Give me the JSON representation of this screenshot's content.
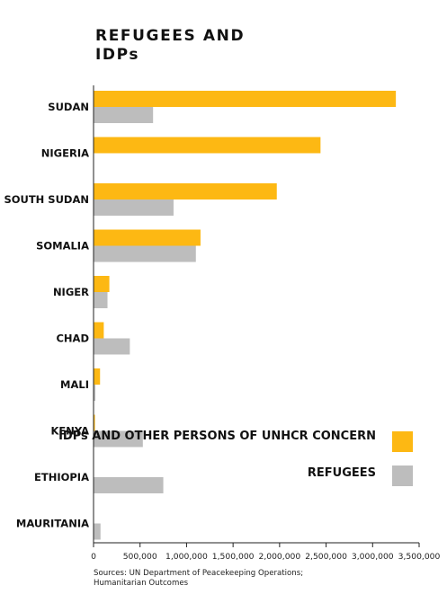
{
  "chart_data": {
    "type": "bar",
    "title": "REFUGEES AND IDPs",
    "categories": [
      "SUDAN",
      "NIGERIA",
      "SOUTH SUDAN",
      "SOMALIA",
      "NIGER",
      "CHAD",
      "MALI",
      "KENYA",
      "ETHIOPIA",
      "MAURITANIA"
    ],
    "series": [
      {
        "name": "IDPs AND OTHER PERSONS OF UNHCR CONCERN",
        "color": "#FDB813",
        "values": [
          3250000,
          2440000,
          1970000,
          1150000,
          170000,
          110000,
          70000,
          15000,
          0,
          0
        ]
      },
      {
        "name": "REFUGEES",
        "color": "#BDBDBD",
        "values": [
          640000,
          0,
          860000,
          1100000,
          150000,
          390000,
          20000,
          530000,
          750000,
          75000
        ]
      }
    ],
    "xlim": [
      0,
      3500000
    ],
    "xticks": [
      "0",
      "500,000",
      "1,000,000",
      "1,500,000",
      "2,000,000",
      "2,500,000",
      "3,000,000",
      "3,500,000"
    ],
    "xtick_values": [
      0,
      500000,
      1000000,
      1500000,
      2000000,
      2500000,
      3000000,
      3500000
    ],
    "legend_position": "lower-right"
  },
  "source": {
    "line1": "Sources: UN Department of Peacekeeping Operations;",
    "line2": "Humanitarian Outcomes"
  }
}
